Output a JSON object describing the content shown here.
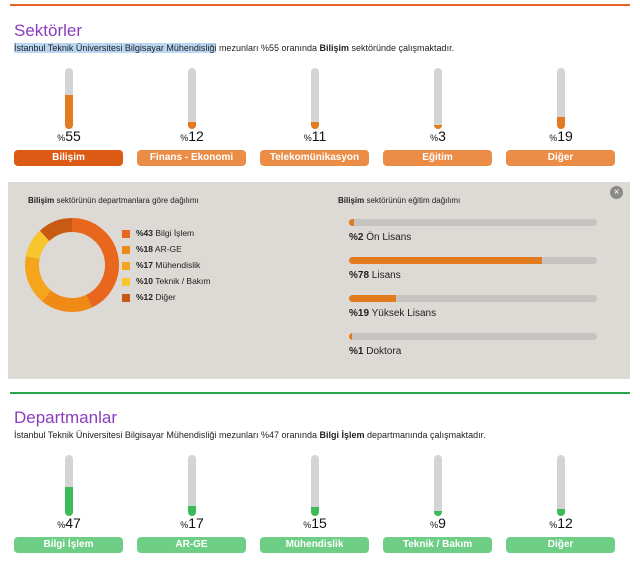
{
  "colors": {
    "accent_purple": "#8b3dbd",
    "orange_line": "#e8632a",
    "green_line": "#2aa54a",
    "orange_fill": "#e37b22",
    "green_fill": "#3dbb5a",
    "btn_orange_active": "#dc5a13",
    "btn_orange": "#eb8d46",
    "btn_green": "#6fce86"
  },
  "sectors": {
    "title": "Sektörler",
    "subtitle": {
      "uni_highlight": "İstanbul Teknik Üniversitesi  Bilgisayar Mühendisliği",
      "mid": " mezunları %55 oranında ",
      "bold": "Bilişim",
      "end": " sektöründe çalışmaktadır."
    },
    "items": [
      {
        "label": "Bilişim",
        "value": "55",
        "level": 0.55,
        "active": true
      },
      {
        "label": "Finans - Ekonomi",
        "value": "12",
        "level": 0.12,
        "active": false
      },
      {
        "label": "Telekomünikasyon",
        "value": "11",
        "level": 0.11,
        "active": false
      },
      {
        "label": "Eğitim",
        "value": "3",
        "level": 0.03,
        "active": false
      },
      {
        "label": "Diğer",
        "value": "19",
        "level": 0.19,
        "active": false
      }
    ]
  },
  "detail": {
    "dept_heading": {
      "bold": "Bilişim",
      "rest": " sektörünün departmanlara göre dağılımı"
    },
    "edu_heading": {
      "bold": "Bilişim",
      "rest": " sektörünün eğitim dağılımı"
    },
    "close_icon": "×",
    "departments": [
      {
        "pct": "%43",
        "label": "Bilgi İşlem",
        "value": 43,
        "color": "#e8671c"
      },
      {
        "pct": "%18",
        "label": "AR-GE",
        "value": 18,
        "color": "#ef8a17"
      },
      {
        "pct": "%17",
        "label": "Mühendislik",
        "value": 17,
        "color": "#f4a51c"
      },
      {
        "pct": "%10",
        "label": "Teknik / Bakım",
        "value": 10,
        "color": "#f7c52c"
      },
      {
        "pct": "%12",
        "label": "Diğer",
        "value": 12,
        "color": "#c85a14"
      }
    ],
    "education": [
      {
        "pct": "%2",
        "label": "Ön Lisans",
        "value": 2
      },
      {
        "pct": "%78",
        "label": "Lisans",
        "value": 78
      },
      {
        "pct": "%19",
        "label": "Yüksek Lisans",
        "value": 19
      },
      {
        "pct": "%1",
        "label": "Doktora",
        "value": 1
      }
    ]
  },
  "departments_section": {
    "title": "Departmanlar",
    "subtitle": {
      "uni": "İstanbul Teknik Üniversitesi  Bilgisayar Mühendisliği",
      "mid": " mezunları %47 oranında ",
      "bold": "Bilgi İşlem",
      "end": " departmanında çalışmaktadır."
    },
    "items": [
      {
        "label": "Bilgi İşlem",
        "value": "47",
        "level": 0.47
      },
      {
        "label": "AR-GE",
        "value": "17",
        "level": 0.17
      },
      {
        "label": "Mühendislik",
        "value": "15",
        "level": 0.15
      },
      {
        "label": "Teknik / Bakım",
        "value": "9",
        "level": 0.09
      },
      {
        "label": "Diğer",
        "value": "12",
        "level": 0.12
      }
    ]
  }
}
